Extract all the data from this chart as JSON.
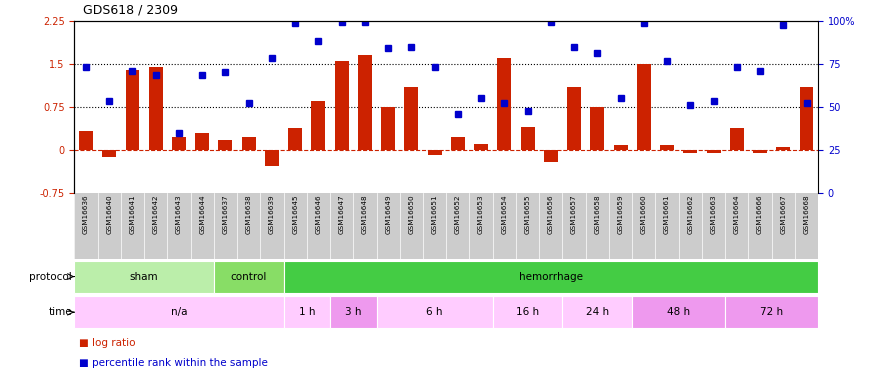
{
  "title": "GDS618 / 2309",
  "samples": [
    "GSM16636",
    "GSM16640",
    "GSM16641",
    "GSM16642",
    "GSM16643",
    "GSM16644",
    "GSM16637",
    "GSM16638",
    "GSM16639",
    "GSM16645",
    "GSM16646",
    "GSM16647",
    "GSM16648",
    "GSM16649",
    "GSM16650",
    "GSM16651",
    "GSM16652",
    "GSM16653",
    "GSM16654",
    "GSM16655",
    "GSM16656",
    "GSM16657",
    "GSM16658",
    "GSM16659",
    "GSM16660",
    "GSM16661",
    "GSM16662",
    "GSM16663",
    "GSM16664",
    "GSM16666",
    "GSM16667",
    "GSM16668"
  ],
  "log_ratio": [
    0.33,
    -0.12,
    1.4,
    1.45,
    0.22,
    0.3,
    0.18,
    0.22,
    -0.28,
    0.38,
    0.85,
    1.55,
    1.65,
    0.75,
    1.1,
    -0.08,
    0.22,
    0.1,
    1.6,
    0.4,
    -0.2,
    1.1,
    0.75,
    0.08,
    1.5,
    0.08,
    -0.05,
    -0.05,
    0.38,
    -0.05,
    0.05,
    1.1
  ],
  "pct_rank": [
    1.45,
    0.85,
    1.38,
    1.3,
    0.3,
    1.3,
    1.35,
    0.82,
    1.6,
    2.2,
    1.9,
    2.22,
    2.22,
    1.78,
    1.8,
    1.45,
    0.62,
    0.9,
    0.82,
    0.68,
    2.22,
    1.8,
    1.68,
    0.9,
    2.2,
    1.55,
    0.78,
    0.85,
    1.45,
    1.38,
    2.18,
    0.82
  ],
  "protocol_groups": [
    {
      "label": "sham",
      "start": 0,
      "end": 6,
      "color": "#bbeeaa"
    },
    {
      "label": "control",
      "start": 6,
      "end": 9,
      "color": "#88dd66"
    },
    {
      "label": "hemorrhage",
      "start": 9,
      "end": 32,
      "color": "#44cc44"
    }
  ],
  "time_groups": [
    {
      "label": "n/a",
      "start": 0,
      "end": 9,
      "color": "#ffccff"
    },
    {
      "label": "1 h",
      "start": 9,
      "end": 11,
      "color": "#ffccff"
    },
    {
      "label": "3 h",
      "start": 11,
      "end": 13,
      "color": "#ee99ee"
    },
    {
      "label": "6 h",
      "start": 13,
      "end": 18,
      "color": "#ffccff"
    },
    {
      "label": "16 h",
      "start": 18,
      "end": 21,
      "color": "#ffccff"
    },
    {
      "label": "24 h",
      "start": 21,
      "end": 24,
      "color": "#ffccff"
    },
    {
      "label": "48 h",
      "start": 24,
      "end": 28,
      "color": "#ee99ee"
    },
    {
      "label": "72 h",
      "start": 28,
      "end": 32,
      "color": "#ee99ee"
    }
  ],
  "bar_color": "#cc2200",
  "dot_color": "#0000cc",
  "hline_y1": 0.75,
  "hline_y2": 1.5,
  "ylim_left": [
    -0.75,
    2.25
  ],
  "ylim_right": [
    0,
    100
  ],
  "yticks_left": [
    -0.75,
    0.0,
    0.75,
    1.5,
    2.25
  ],
  "yticks_left_labels": [
    "-0.75",
    "0",
    "0.75",
    "1.5",
    "2.25"
  ],
  "yticks_right": [
    0,
    25,
    50,
    75,
    100
  ],
  "yticks_right_labels": [
    "0",
    "25",
    "50",
    "75",
    "100%"
  ],
  "label_bg_color": "#cccccc",
  "label_line_color": "#ffffff"
}
